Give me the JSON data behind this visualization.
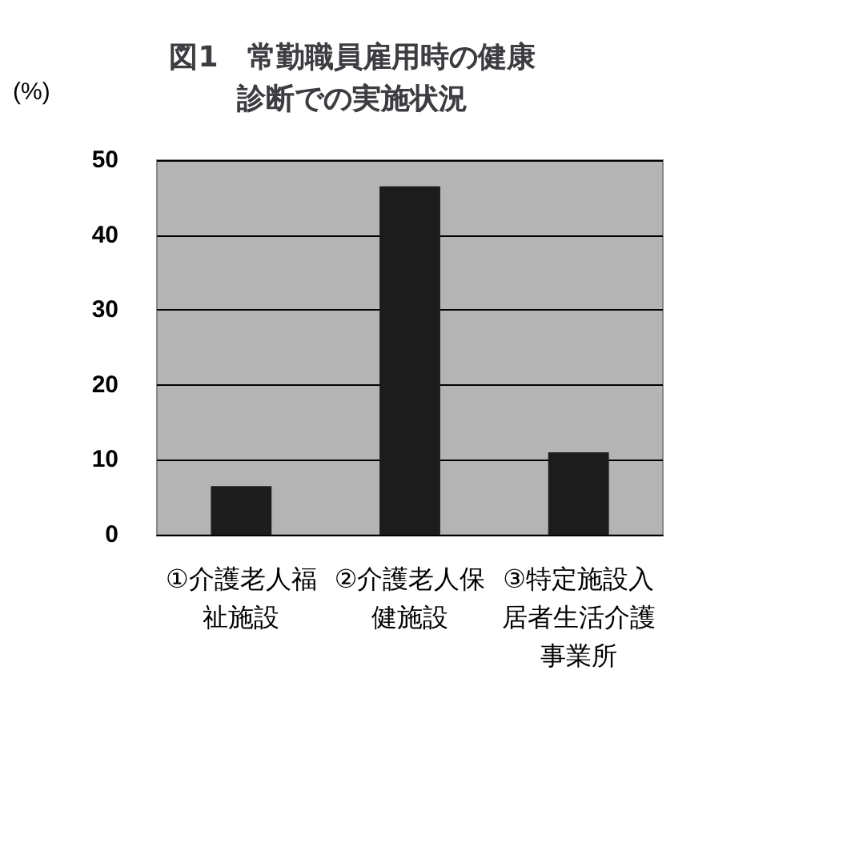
{
  "chart_data": {
    "type": "bar",
    "title": "図1　常勤職員雇用時の健康診断での実施状況",
    "ylabel": "(%)",
    "categories": [
      "①介護老人福祉施設",
      "②介護老人保健施設",
      "③特定施設入居者生活介護事業所"
    ],
    "values": [
      6.5,
      46.5,
      11
    ],
    "color": "#1c1c1c",
    "ylim": [
      0,
      50
    ],
    "yticks": [
      0,
      10,
      20,
      30,
      40,
      50
    ],
    "grid": "y"
  }
}
